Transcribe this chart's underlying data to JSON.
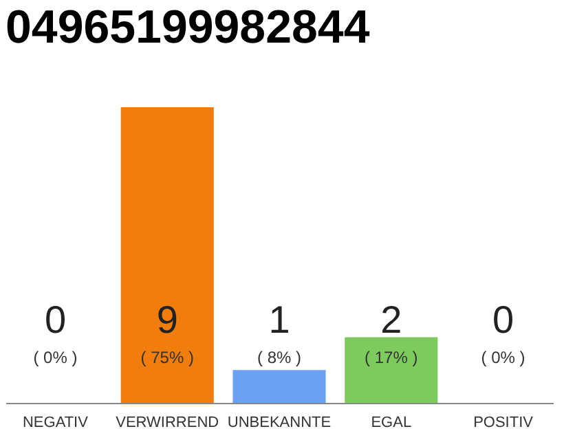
{
  "chart_data": {
    "type": "bar",
    "title": "04965199982844",
    "categories": [
      "NEGATIV",
      "VERWIRREND",
      "UNBEKANNTE",
      "EGAL",
      "POSITIV"
    ],
    "values": [
      0,
      9,
      1,
      2,
      0
    ],
    "colors": [
      "#cccccc",
      "#f07d0c",
      "#6ca0f0",
      "#7ccb5c",
      "#cccccc"
    ],
    "value_labels": [
      "0",
      "9",
      "1",
      "2",
      "0"
    ],
    "annotations": [
      "( 0% )",
      "( 75% )",
      "( 8% )",
      "( 17% )",
      "( 0% )"
    ]
  }
}
